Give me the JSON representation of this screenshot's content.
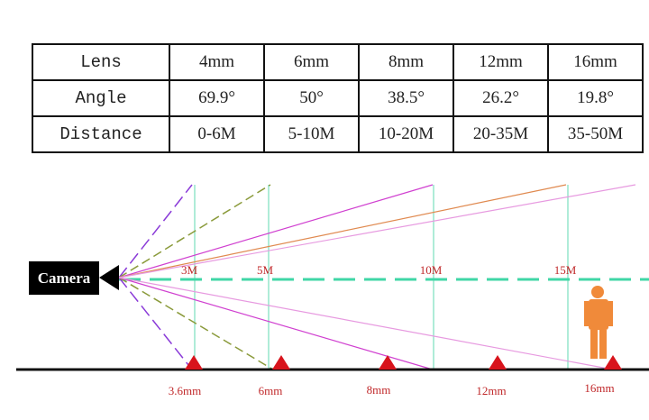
{
  "table": {
    "rows": [
      [
        "Lens",
        "4mm",
        "6mm",
        "8mm",
        "12mm",
        "16mm"
      ],
      [
        "Angle",
        "69.9°",
        "50°",
        "38.5°",
        "26.2°",
        "19.8°"
      ],
      [
        "Distance",
        "0-6M",
        "5-10M",
        "10-20M",
        "20-35M",
        "35-50M"
      ]
    ]
  },
  "diagram": {
    "camera": "Camera",
    "distances": [
      "3M",
      "5M",
      "10M",
      "15M"
    ],
    "lenses": [
      "3.6mm",
      "6mm",
      "8mm",
      "12mm",
      "16mm"
    ]
  }
}
